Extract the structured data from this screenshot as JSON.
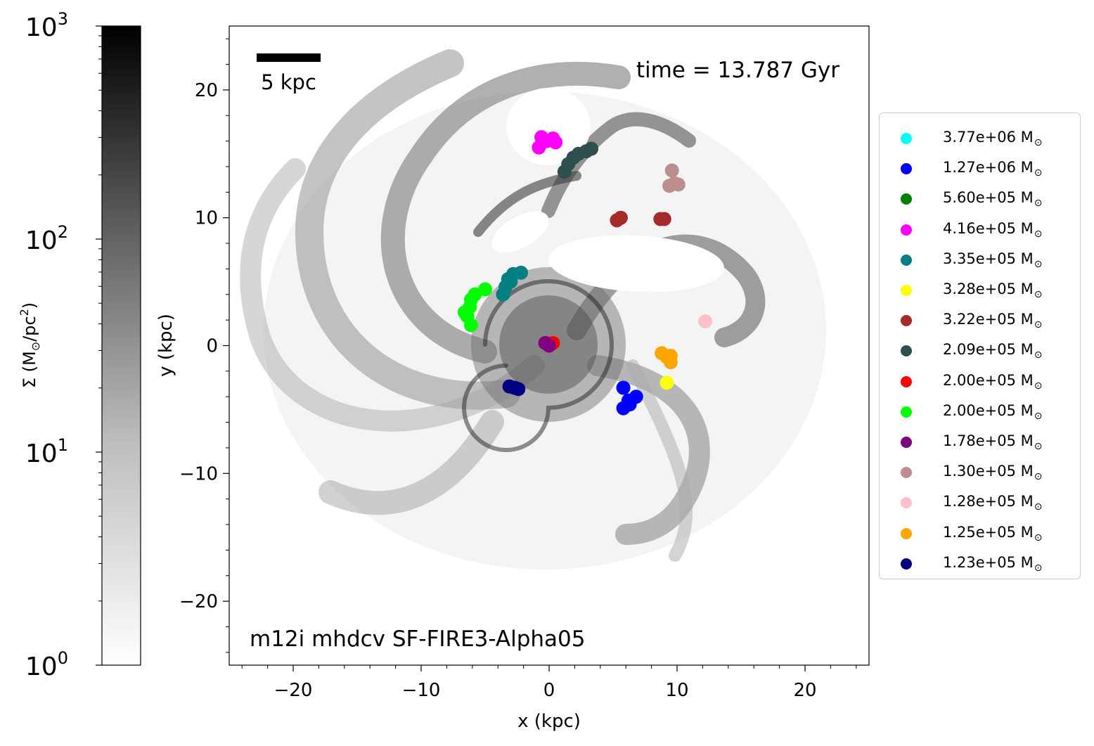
{
  "chart_data": {
    "type": "scatter",
    "annotation_time": "time = 13.787 Gyr",
    "annotation_run": "m12i mhdcv SF-FIRE3-Alpha05",
    "scalebar_label": "5 kpc",
    "scalebar_length": 5,
    "xlabel": "x (kpc)",
    "ylabel": "y (kpc)",
    "xlim": [
      -25,
      25
    ],
    "ylim": [
      -25,
      25
    ],
    "xticks": [
      -20,
      -10,
      0,
      10,
      20
    ],
    "yticks": [
      -20,
      -10,
      0,
      10,
      20
    ],
    "xtick_labels": [
      "−20",
      "−10",
      "0",
      "10",
      "20"
    ],
    "ytick_labels": [
      "−20",
      "−10",
      "0",
      "10",
      "20"
    ],
    "colorbar": {
      "label_main": "Σ (M",
      "label_sub": "⊙",
      "label_tail": "/pc",
      "label_sup": "2",
      "label_end": ")",
      "scale": "log",
      "range": [
        1,
        1000
      ],
      "ticks": [
        {
          "value": 1,
          "base": "10",
          "exp": "0"
        },
        {
          "value": 10,
          "base": "10",
          "exp": "1"
        },
        {
          "value": 100,
          "base": "10",
          "exp": "2"
        },
        {
          "value": 1000,
          "base": "10",
          "exp": "3"
        }
      ],
      "colormap": "grayscale (white to black)"
    },
    "legend_placement": "outside right",
    "series": [
      {
        "name": "3.77e+06 M",
        "color": "#00ffff",
        "points": []
      },
      {
        "name": "1.27e+06 M",
        "color": "#0000ff",
        "points": [
          [
            5.8,
            -3.3
          ],
          [
            6.2,
            -4.3
          ],
          [
            5.8,
            -4.9
          ],
          [
            6.8,
            -4.0
          ],
          [
            6.3,
            -4.6
          ]
        ]
      },
      {
        "name": "5.60e+05 M",
        "color": "#008000",
        "points": []
      },
      {
        "name": "4.16e+05 M",
        "color": "#ff00ff",
        "points": [
          [
            -0.6,
            16.3
          ],
          [
            -0.8,
            15.5
          ],
          [
            0.3,
            16.2
          ],
          [
            0.5,
            15.9
          ],
          [
            -0.2,
            16.0
          ]
        ]
      },
      {
        "name": "3.35e+05 M",
        "color": "#008080",
        "points": [
          [
            -3.6,
            4.0
          ],
          [
            -3.4,
            4.6
          ],
          [
            -3.2,
            5.2
          ],
          [
            -2.8,
            5.6
          ],
          [
            -2.2,
            5.7
          ],
          [
            -3.0,
            5.0
          ]
        ]
      },
      {
        "name": "3.28e+05 M",
        "color": "#ffff00",
        "points": [
          [
            9.2,
            -2.9
          ]
        ]
      },
      {
        "name": "3.22e+05 M",
        "color": "#a52a2a",
        "points": [
          [
            5.3,
            9.8
          ],
          [
            5.6,
            10.0
          ],
          [
            8.7,
            9.9
          ],
          [
            9.0,
            9.9
          ]
        ]
      },
      {
        "name": "2.09e+05 M",
        "color": "#2f4f4f",
        "points": [
          [
            1.2,
            13.6
          ],
          [
            1.5,
            14.2
          ],
          [
            1.9,
            14.7
          ],
          [
            2.3,
            15.0
          ],
          [
            2.9,
            15.2
          ],
          [
            3.3,
            15.4
          ]
        ]
      },
      {
        "name": "2.00e+05 M",
        "color": "#ff0000",
        "points": [
          [
            0.3,
            0.2
          ]
        ]
      },
      {
        "name": "2.00e+05 M",
        "color": "#00ff00",
        "points": [
          [
            -6.1,
            1.6
          ],
          [
            -6.4,
            2.3
          ],
          [
            -6.6,
            2.6
          ],
          [
            -6.2,
            3.0
          ],
          [
            -6.1,
            3.6
          ],
          [
            -5.8,
            4.0
          ],
          [
            -5.0,
            4.4
          ]
        ]
      },
      {
        "name": "1.78e+05 M",
        "color": "#800080",
        "points": [
          [
            -0.3,
            0.2
          ],
          [
            0.0,
            0.0
          ]
        ]
      },
      {
        "name": "1.30e+05 M",
        "color": "#bc8f8f",
        "points": [
          [
            9.6,
            13.7
          ],
          [
            9.4,
            12.5
          ],
          [
            9.8,
            12.7
          ],
          [
            10.1,
            12.6
          ]
        ]
      },
      {
        "name": "1.28e+05 M",
        "color": "#ffc0cb",
        "points": [
          [
            12.2,
            1.9
          ]
        ]
      },
      {
        "name": "1.25e+05 M",
        "color": "#ffa500",
        "points": [
          [
            8.8,
            -0.6
          ],
          [
            9.2,
            -0.9
          ],
          [
            9.5,
            -1.3
          ],
          [
            9.5,
            -0.8
          ]
        ]
      },
      {
        "name": "1.23e+05 M",
        "color": "#000080",
        "points": [
          [
            -3.1,
            -3.2
          ],
          [
            -2.7,
            -3.3
          ],
          [
            -2.4,
            -3.4
          ]
        ]
      }
    ],
    "legend_suffix": "⊙"
  }
}
